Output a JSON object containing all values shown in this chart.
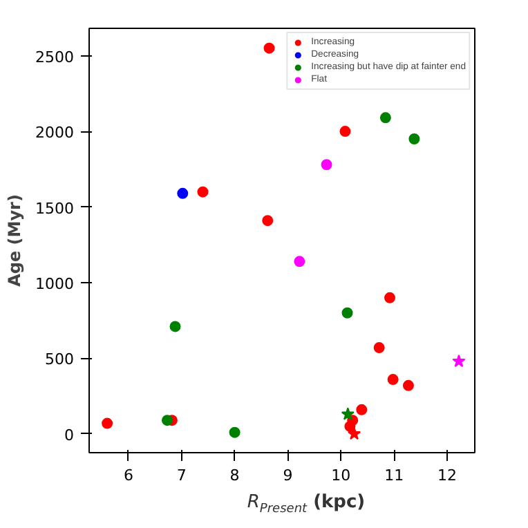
{
  "chart_data": {
    "type": "scatter",
    "xlabel": "R$_{Present}$ (kpc)",
    "ylabel": "Age (Myr)",
    "xlim": [
      5.26,
      12.52
    ],
    "ylim": [
      -124,
      2681
    ],
    "xticks": [
      6,
      7,
      8,
      9,
      10,
      11,
      12
    ],
    "yticks": [
      0,
      500,
      1000,
      1500,
      2000,
      2500
    ],
    "grid": false,
    "legend": "top right",
    "marker": "circle",
    "series": [
      {
        "name": "Increasing",
        "color": "#ff0000",
        "x": [
          5.6,
          6.82,
          7.4,
          8.62,
          8.65,
          10.08,
          10.92,
          10.72,
          10.98,
          11.27,
          10.39,
          10.22,
          10.17
        ],
        "values": [
          70,
          90,
          1600,
          1410,
          2550,
          2000,
          900,
          570,
          360,
          320,
          160,
          90,
          50
        ]
      },
      {
        "name": "Decreasing",
        "color": "#0000ff",
        "x": [
          7.02
        ],
        "values": [
          1590
        ]
      },
      {
        "name": "Increasing but have dip at fainter end",
        "color": "#008000",
        "x": [
          6.73,
          6.88,
          8.0,
          10.12,
          10.84,
          11.38
        ],
        "values": [
          90,
          710,
          10,
          800,
          2090,
          1950
        ]
      },
      {
        "name": "Flat",
        "color": "#ff00ff",
        "x": [
          9.73,
          9.22
        ],
        "values": [
          1780,
          1140
        ]
      },
      {
        "color": "#ff0000",
        "marker": "star",
        "x": [
          10.25
        ],
        "values": [
          0
        ]
      },
      {
        "color": "#008000",
        "marker": "star",
        "x": [
          10.13
        ],
        "values": [
          130
        ]
      },
      {
        "color": "#ff00ff",
        "marker": "star",
        "x": [
          12.22
        ],
        "values": [
          480
        ]
      }
    ]
  }
}
